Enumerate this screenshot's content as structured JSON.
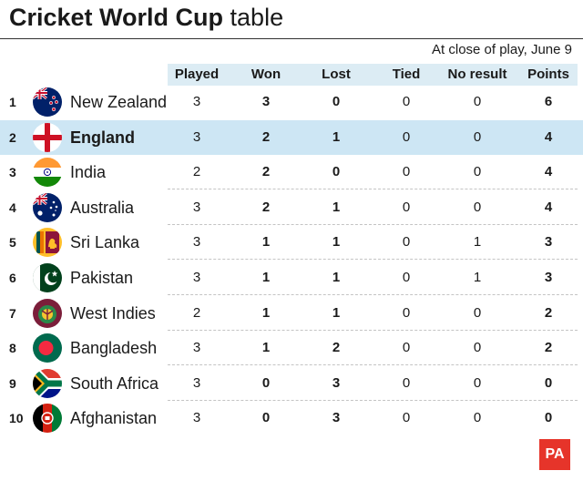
{
  "title": {
    "bold": "Cricket World Cup",
    "rest": " table"
  },
  "subtitle": "At close of play, June 9",
  "columns": [
    "Played",
    "Won",
    "Lost",
    "Tied",
    "No result",
    "Points"
  ],
  "rows": [
    {
      "rank": "1",
      "team": "New Zealand",
      "flag": "new-zealand-flag",
      "played": "3",
      "won": "3",
      "lost": "0",
      "tied": "0",
      "nr": "0",
      "points": "6"
    },
    {
      "rank": "2",
      "team": "England",
      "flag": "england-flag",
      "played": "3",
      "won": "2",
      "lost": "1",
      "tied": "0",
      "nr": "0",
      "points": "4",
      "highlight": true
    },
    {
      "rank": "3",
      "team": "India",
      "flag": "india-flag",
      "played": "2",
      "won": "2",
      "lost": "0",
      "tied": "0",
      "nr": "0",
      "points": "4"
    },
    {
      "rank": "4",
      "team": "Australia",
      "flag": "australia-flag",
      "played": "3",
      "won": "2",
      "lost": "1",
      "tied": "0",
      "nr": "0",
      "points": "4"
    },
    {
      "rank": "5",
      "team": "Sri Lanka",
      "flag": "sri-lanka-flag",
      "played": "3",
      "won": "1",
      "lost": "1",
      "tied": "0",
      "nr": "1",
      "points": "3"
    },
    {
      "rank": "6",
      "team": "Pakistan",
      "flag": "pakistan-flag",
      "played": "3",
      "won": "1",
      "lost": "1",
      "tied": "0",
      "nr": "1",
      "points": "3"
    },
    {
      "rank": "7",
      "team": "West Indies",
      "flag": "west-indies-flag",
      "played": "2",
      "won": "1",
      "lost": "1",
      "tied": "0",
      "nr": "0",
      "points": "2"
    },
    {
      "rank": "8",
      "team": "Bangladesh",
      "flag": "bangladesh-flag",
      "played": "3",
      "won": "1",
      "lost": "2",
      "tied": "0",
      "nr": "0",
      "points": "2"
    },
    {
      "rank": "9",
      "team": "South Africa",
      "flag": "south-africa-flag",
      "played": "3",
      "won": "0",
      "lost": "3",
      "tied": "0",
      "nr": "0",
      "points": "0"
    },
    {
      "rank": "10",
      "team": "Afghanistan",
      "flag": "afghanistan-flag",
      "played": "3",
      "won": "0",
      "lost": "3",
      "tied": "0",
      "nr": "0",
      "points": "0"
    }
  ],
  "logo": "PA",
  "colors": {
    "highlight": "#cde6f4",
    "header_band": "#dcecf4",
    "logo_red": "#e6342a"
  }
}
